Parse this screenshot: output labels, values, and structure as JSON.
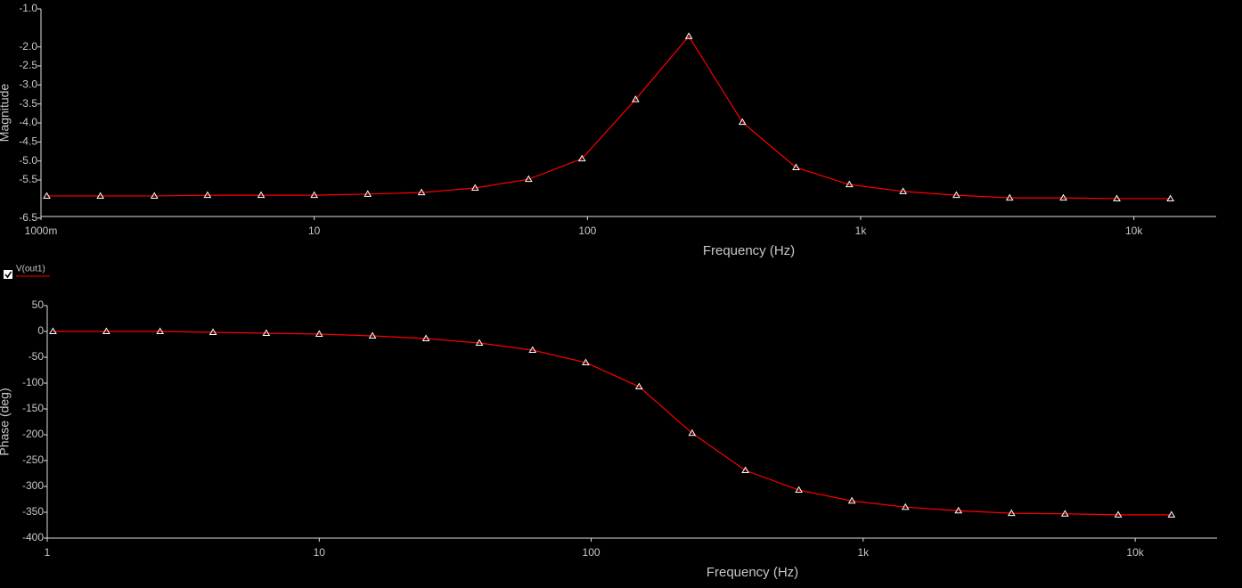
{
  "chart_data": [
    {
      "type": "line",
      "xscale": "log",
      "marker": "triangle",
      "xlabel": "Frequency (Hz)",
      "ylabel": "Magnitude",
      "x": [
        1.05,
        1.65,
        2.6,
        4.07,
        6.39,
        10,
        15.7,
        24.7,
        38.8,
        60.9,
        95.5,
        150,
        235,
        369,
        580,
        909,
        1430,
        2240,
        3510,
        5520,
        8660,
        13600
      ],
      "series": [
        {
          "color": "#ff0000",
          "values": [
            -5.92,
            -5.92,
            -5.92,
            -5.9,
            -5.9,
            -5.9,
            -5.87,
            -5.83,
            -5.71,
            -5.48,
            -4.94,
            -3.38,
            -1.72,
            -3.98,
            -5.17,
            -5.62,
            -5.8,
            -5.9,
            -5.97,
            -5.97,
            -5.99,
            -5.99
          ]
        }
      ],
      "xlim": [
        1,
        20000
      ],
      "xticks": [
        {
          "value": 1,
          "label": "1000m"
        },
        10,
        100,
        {
          "value": 1000,
          "label": "1k"
        },
        {
          "value": 10000,
          "label": "10k"
        }
      ],
      "ylim": [
        -6.46,
        -1.0
      ],
      "yticks": [
        {
          "value": -1,
          "label": "-1.0"
        },
        {
          "value": -2,
          "label": "-2.0"
        },
        -2.5,
        {
          "value": -3,
          "label": "-3.0"
        },
        -3.5,
        {
          "value": -4,
          "label": "-4.0"
        },
        -4.5,
        {
          "value": -5,
          "label": "-5.0"
        },
        -5.5,
        -6.5
      ]
    },
    {
      "type": "line",
      "xscale": "log",
      "marker": "triangle",
      "xlabel": "Frequency (Hz)",
      "ylabel": "Phase (deg)",
      "x": [
        1.05,
        1.65,
        2.6,
        4.07,
        6.39,
        10,
        15.7,
        24.7,
        38.8,
        60.9,
        95.5,
        150,
        235,
        369,
        580,
        909,
        1430,
        2240,
        3510,
        5520,
        8660,
        13600
      ],
      "series": [
        {
          "name": "V(out1)",
          "color": "#ff0000",
          "values": [
            0,
            0,
            0,
            -1.7,
            -3.4,
            -5.2,
            -8.6,
            -13.8,
            -22.4,
            -36.2,
            -60.3,
            -107,
            -197,
            -269,
            -307,
            -328,
            -340,
            -347,
            -352,
            -353,
            -355,
            -355
          ]
        }
      ],
      "xlim": [
        1,
        20000
      ],
      "xticks": [
        1,
        10,
        100,
        {
          "value": 1000,
          "label": "1k"
        },
        {
          "value": 10000,
          "label": "10k"
        }
      ],
      "ylim": [
        -400,
        50
      ],
      "yticks": [
        50,
        0,
        -50,
        -100,
        -150,
        -200,
        -250,
        -300,
        -350,
        -400
      ]
    }
  ]
}
